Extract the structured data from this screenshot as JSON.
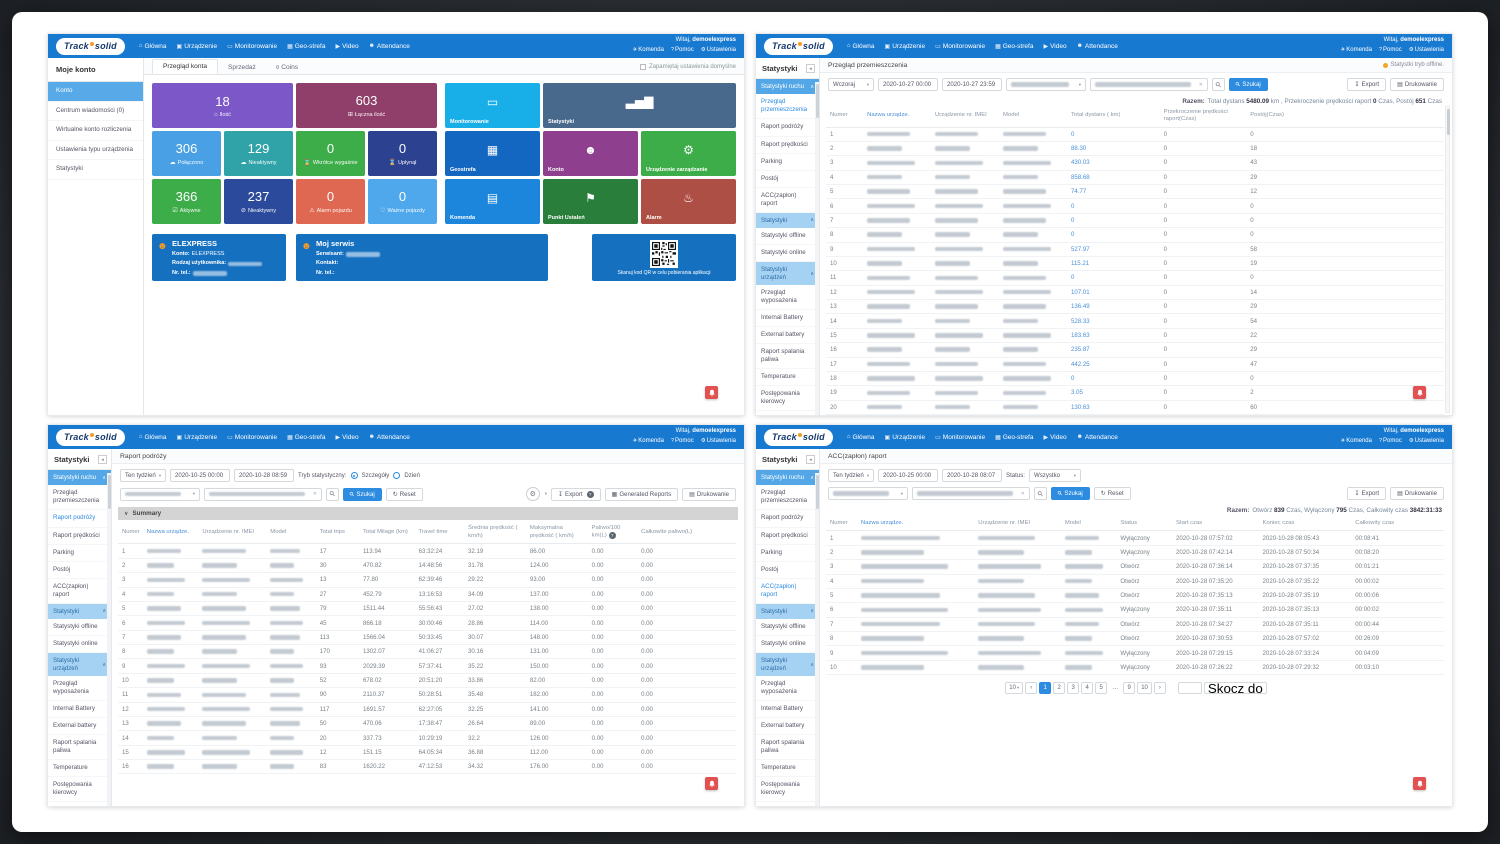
{
  "brand": {
    "track": "Track",
    "solid": "solid"
  },
  "nav": {
    "welcome": "Witaj,",
    "user": "demoelexpress",
    "items": [
      {
        "name": "home",
        "glyph": "⌂",
        "label": "Główna"
      },
      {
        "name": "device",
        "glyph": "▣",
        "label": "Urządzenie"
      },
      {
        "name": "monitoring",
        "glyph": "▭",
        "label": "Monitorowanie"
      },
      {
        "name": "geofence",
        "glyph": "▦",
        "label": "Geo-strefa"
      },
      {
        "name": "video",
        "glyph": "▶",
        "label": "Video"
      },
      {
        "name": "attendance",
        "glyph": "☻",
        "label": "Attendance"
      }
    ],
    "quick": [
      {
        "name": "command",
        "glyph": "✈",
        "label": "Komenda"
      },
      {
        "name": "help",
        "glyph": "?",
        "label": "Pomoc"
      },
      {
        "name": "settings",
        "glyph": "⚙",
        "label": "Ustawienia"
      }
    ]
  },
  "statsSidebar": {
    "title": "Statystyki",
    "sections": [
      {
        "label": "Statystyki ruchu",
        "items": [
          "Przegląd przemieszczenia",
          "Raport podróży",
          "Raport prędkości",
          "Parking",
          "Postój",
          "ACC(zapłon) raport"
        ]
      },
      {
        "label": "Statystyki",
        "items": [
          "Statystyki offline",
          "Statystyki online"
        ]
      },
      {
        "label": "Statystyki urządzeń",
        "items": [
          "Przegląd wyposażenia",
          "Internal Battery",
          "External battery",
          "Raport spalania paliwa",
          "Temperature",
          "Postępowania kierowcy",
          "Pozycjonowanie i Bateria"
        ]
      },
      {
        "label": "Statystyki alarmowe",
        "items": [
          "Przegląd alarmów",
          "Alarm szczegółowy"
        ]
      }
    ]
  },
  "q1": {
    "sidebar": {
      "title": "Moje konto",
      "items": [
        "Konto",
        "Centrum wiadomości (0)",
        "Wirtualne konto rozliczenia",
        "Ustawienia typu urządzenia",
        "Statystyki"
      ],
      "active": 0
    },
    "tabs": [
      {
        "label": "Przegląd konta",
        "active": true
      },
      {
        "label": "Sprzedaż"
      },
      {
        "label": "Coins",
        "icon": "¤"
      }
    ],
    "remember_label": "Zapamiętaj ustawienia domyślne",
    "tilesLeft": [
      {
        "value": "18",
        "label": "Ilość",
        "icon": "home-icon",
        "glyph": "⌂",
        "color": "#7b57c8",
        "span": 2
      },
      {
        "value": "603",
        "label": "Łączna ilość",
        "icon": "cart-icon",
        "glyph": "⊞",
        "color": "#8f3f69",
        "span": 2
      },
      {
        "value": "306",
        "label": "Połączono",
        "icon": "cloud-icon",
        "glyph": "☁",
        "color": "#4aa0e4"
      },
      {
        "value": "129",
        "label": "Nieaktywny",
        "icon": "cloud-icon",
        "glyph": "☁",
        "color": "#2fa3a8"
      },
      {
        "value": "0",
        "label": "Wkrótce wygaśnie",
        "icon": "hourglass-icon",
        "glyph": "⌛",
        "color": "#3dad49"
      },
      {
        "value": "0",
        "label": "Upłynął",
        "icon": "hourglass-icon",
        "glyph": "⌛",
        "color": "#2c4291"
      },
      {
        "value": "366",
        "label": "Aktywne",
        "icon": "user-check-icon",
        "glyph": "☑",
        "color": "#3dad49"
      },
      {
        "value": "237",
        "label": "Nieaktywny",
        "icon": "user-off-icon",
        "glyph": "⊘",
        "color": "#2c4a9c"
      },
      {
        "value": "0",
        "label": "Alarm pojazdu",
        "icon": "warning-icon",
        "glyph": "⚠",
        "color": "#df6852"
      },
      {
        "value": "0",
        "label": "Ważne pojazdy",
        "icon": "heart-icon",
        "glyph": "♡",
        "color": "#4fa8ec"
      }
    ],
    "tilesRight": [
      {
        "label": "Monitorowanie",
        "icon": "monitor-icon",
        "glyph": "▭",
        "color": "#18aee8"
      },
      {
        "label": "Statystyki",
        "icon": "chart-icon",
        "glyph": "▃▅▇",
        "color": "#48688c",
        "span": 2
      },
      {
        "label": "Geostrefa",
        "icon": "geofence-icon",
        "glyph": "▦",
        "color": "#1467c0"
      },
      {
        "label": "Konto",
        "icon": "user-icon",
        "glyph": "☻",
        "color": "#8e3f8e"
      },
      {
        "label": "Urządzenie zarządzanie",
        "icon": "router-icon",
        "glyph": "⚙",
        "color": "#3dad49"
      },
      {
        "label": "Komenda",
        "icon": "notebook-icon",
        "glyph": "▤",
        "color": "#1c86dc"
      },
      {
        "label": "Punkt Ustaleń",
        "icon": "flag-icon",
        "glyph": "⚑",
        "color": "#2a7e3c"
      },
      {
        "label": "Alarm",
        "icon": "bell-icon",
        "glyph": "♨",
        "color": "#ad4f44"
      }
    ],
    "cards": [
      {
        "title": "ELEXPRESS",
        "rows": [
          {
            "k": "Konto:",
            "v": "ELEXPRESS"
          },
          {
            "k": "Rodzaj użytkownika:",
            "v": null
          },
          {
            "k": "Nr. tel.:",
            "v": null
          }
        ]
      },
      {
        "title": "Moj serwis",
        "rows": [
          {
            "k": "Serwisant:",
            "v": null
          },
          {
            "k": "Kontakt:",
            "v": ""
          },
          {
            "k": "Nr. tel.:",
            "v": ""
          }
        ]
      },
      {
        "qr_caption": "Skanuj kod QR w celu pobierania aplikacji"
      }
    ]
  },
  "q2": {
    "sidebar_active": "Przegląd przemieszczenia",
    "breadcrumb": "Przegląd przemieszczenia",
    "offline_link": "Statystki tryb offline.",
    "filters": {
      "range": "Wczoraj",
      "from": "2020-10-27 00:00",
      "to": "2020-10-27 23:59",
      "search": "Szukaj",
      "export": "Export",
      "print": "Drukowanie"
    },
    "totals": [
      {
        "t": "Razem:",
        "lbl": true
      },
      {
        "t": "Total dystans "
      },
      {
        "t": "5480.09",
        "b": true
      },
      {
        "t": " km , Przekroczenie prędkości raport "
      },
      {
        "t": "0",
        "b": true
      },
      {
        "t": " Czas, Postój "
      },
      {
        "t": "651",
        "b": true
      },
      {
        "t": " Czas"
      }
    ],
    "table": {
      "headers": [
        "Numer",
        "Nazwa urządze.",
        "Urządzenie nr. IMEI",
        "Model",
        "Total dystans ( km)",
        "Przekroczenie prędkości raport(Czas)",
        "Postój(Czas)"
      ],
      "widths": [
        6,
        11,
        11,
        11,
        15,
        14,
        32
      ],
      "types": [
        "t",
        "r",
        "r",
        "r",
        "l",
        "t",
        "t"
      ],
      "link_header": 1,
      "rows": [
        [
          "1",
          null,
          null,
          null,
          "0",
          "0",
          "0"
        ],
        [
          "2",
          null,
          null,
          null,
          "88.30",
          "0",
          "18"
        ],
        [
          "3",
          null,
          null,
          null,
          "430.03",
          "0",
          "43"
        ],
        [
          "4",
          null,
          null,
          null,
          "858.68",
          "0",
          "29"
        ],
        [
          "5",
          null,
          null,
          null,
          "74.77",
          "0",
          "12"
        ],
        [
          "6",
          null,
          null,
          null,
          "0",
          "0",
          "0"
        ],
        [
          "7",
          null,
          null,
          null,
          "0",
          "0",
          "0"
        ],
        [
          "8",
          null,
          null,
          null,
          "0",
          "0",
          "0"
        ],
        [
          "9",
          null,
          null,
          null,
          "527.97",
          "0",
          "58"
        ],
        [
          "10",
          null,
          null,
          null,
          "115.21",
          "0",
          "19"
        ],
        [
          "11",
          null,
          null,
          null,
          "0",
          "0",
          "0"
        ],
        [
          "12",
          null,
          null,
          null,
          "107.01",
          "0",
          "14"
        ],
        [
          "13",
          null,
          null,
          null,
          "136.49",
          "0",
          "29"
        ],
        [
          "14",
          null,
          null,
          null,
          "528.33",
          "0",
          "54"
        ],
        [
          "15",
          null,
          null,
          null,
          "183.63",
          "0",
          "22"
        ],
        [
          "16",
          null,
          null,
          null,
          "235.87",
          "0",
          "29"
        ],
        [
          "17",
          null,
          null,
          null,
          "442.25",
          "0",
          "47"
        ],
        [
          "18",
          null,
          null,
          null,
          "0",
          "0",
          "0"
        ],
        [
          "19",
          null,
          null,
          null,
          "3.05",
          "0",
          "2"
        ],
        [
          "20",
          null,
          null,
          null,
          "130.63",
          "0",
          "60"
        ]
      ]
    }
  },
  "q3": {
    "sidebar_active": "Raport podróży",
    "breadcrumb": "Raport podróży",
    "filters": {
      "range": "Ten tydzień",
      "from": "2020-10-25 00:00",
      "to": "2020-10-28 08:59",
      "mode_label": "Tryb statystyczny:",
      "mode1": "Szczegóły",
      "mode2": "Dzień",
      "search": "Szukaj",
      "reset": "Reset",
      "export": "Export",
      "reports": "Generated Reports",
      "print": "Drukowanie"
    },
    "summary_label": "Summary",
    "table": {
      "headers": [
        "Numer",
        "Nazwa urządze.",
        "Urządzenie nr. IMEI",
        "Model",
        "Total trips",
        "Total Milage (km)",
        "Travel time",
        "Średnia prędkość ( km/h)",
        "Maksymalna prędkość ( km/h)",
        "Paliwo/100 km(L)",
        "Całkowite paliwo(L)"
      ],
      "widths": [
        4,
        9,
        11,
        8,
        7,
        9,
        8,
        10,
        10,
        8,
        16
      ],
      "types": [
        "t",
        "r",
        "r",
        "r",
        "t",
        "t",
        "t",
        "t",
        "t",
        "t",
        "t"
      ],
      "link_header": 1,
      "help_col": 9,
      "rows": [
        [
          "1",
          null,
          null,
          null,
          "17",
          "113.94",
          "63:32:24",
          "32.19",
          "86.00",
          "0.00",
          "0.00"
        ],
        [
          "2",
          null,
          null,
          null,
          "30",
          "470.82",
          "14:48:56",
          "31.78",
          "124.00",
          "0.00",
          "0.00"
        ],
        [
          "3",
          null,
          null,
          null,
          "13",
          "77.80",
          "62:39:46",
          "29.22",
          "93.00",
          "0.00",
          "0.00"
        ],
        [
          "4",
          null,
          null,
          null,
          "27",
          "452.79",
          "13:16:53",
          "34.09",
          "137.00",
          "0.00",
          "0.00"
        ],
        [
          "5",
          null,
          null,
          null,
          "79",
          "1511.44",
          "55:56:43",
          "27.02",
          "138.00",
          "0.00",
          "0.00"
        ],
        [
          "6",
          null,
          null,
          null,
          "45",
          "866.18",
          "30:00:46",
          "28.86",
          "114.00",
          "0.00",
          "0.00"
        ],
        [
          "7",
          null,
          null,
          null,
          "113",
          "1566.04",
          "50:33:45",
          "30.07",
          "148.00",
          "0.00",
          "0.00"
        ],
        [
          "8",
          null,
          null,
          null,
          "170",
          "1302.07",
          "41:06:27",
          "30.16",
          "131.00",
          "0.00",
          "0.00"
        ],
        [
          "9",
          null,
          null,
          null,
          "93",
          "2029.39",
          "57:37:41",
          "35.22",
          "150.00",
          "0.00",
          "0.00"
        ],
        [
          "10",
          null,
          null,
          null,
          "52",
          "678.02",
          "20:51:20",
          "33.86",
          "82.00",
          "0.00",
          "0.00"
        ],
        [
          "11",
          null,
          null,
          null,
          "90",
          "2110.37",
          "50:28:51",
          "35.48",
          "182.00",
          "0.00",
          "0.00"
        ],
        [
          "12",
          null,
          null,
          null,
          "117",
          "1691.57",
          "62:27:05",
          "32.25",
          "141.00",
          "0.00",
          "0.00"
        ],
        [
          "13",
          null,
          null,
          null,
          "50",
          "470.06",
          "17:38:47",
          "26.64",
          "89.00",
          "0.00",
          "0.00"
        ],
        [
          "14",
          null,
          null,
          null,
          "20",
          "337.73",
          "10:29:19",
          "32.2",
          "126.00",
          "0.00",
          "0.00"
        ],
        [
          "15",
          null,
          null,
          null,
          "12",
          "151.15",
          "64:05:34",
          "36.88",
          "112.00",
          "0.00",
          "0.00"
        ],
        [
          "16",
          null,
          null,
          null,
          "83",
          "1620.22",
          "47:12:53",
          "34.32",
          "176.00",
          "0.00",
          "0.00"
        ]
      ]
    }
  },
  "q4": {
    "sidebar_active": "ACC(zapłon) raport",
    "breadcrumb": "ACC(zapłon) raport",
    "filters": {
      "range": "Ten tydzień",
      "from": "2020-10-25 00:00",
      "to": "2020-10-28 08:07",
      "status_label": "Status:",
      "status": "Wszystko",
      "search": "Szukaj",
      "reset": "Reset",
      "export": "Export",
      "print": "Drukowanie"
    },
    "totals": [
      {
        "t": "Razem:",
        "lbl": true
      },
      {
        "t": "Otwórz "
      },
      {
        "t": "839",
        "b": true
      },
      {
        "t": " Czas, Wyłączony "
      },
      {
        "t": "795",
        "b": true
      },
      {
        "t": " Czas, Całkowity czas "
      },
      {
        "t": "3842:31:33",
        "b": true
      }
    ],
    "table": {
      "headers": [
        "Numer",
        "Nazwa urządze.",
        "Urządzenie nr. IMEI",
        "Model",
        "Status",
        "Start czas",
        "Koniec czas",
        "Całkowity czas"
      ],
      "widths": [
        5,
        19,
        14,
        9,
        9,
        14,
        15,
        15
      ],
      "types": [
        "t",
        "r",
        "r",
        "r",
        "t",
        "t",
        "t",
        "t"
      ],
      "link_header": 1,
      "rows": [
        [
          "1",
          null,
          null,
          null,
          "Wyłączony",
          "2020-10-28 07:57:02",
          "2020-10-28 08:05:43",
          "00:08:41"
        ],
        [
          "2",
          null,
          null,
          null,
          "Wyłączony",
          "2020-10-28 07:42:14",
          "2020-10-28 07:50:34",
          "00:08:20"
        ],
        [
          "3",
          null,
          null,
          null,
          "Otwórz",
          "2020-10-28 07:36:14",
          "2020-10-28 07:37:35",
          "00:01:21"
        ],
        [
          "4",
          null,
          null,
          null,
          "Otwórz",
          "2020-10-28 07:35:20",
          "2020-10-28 07:35:22",
          "00:00:02"
        ],
        [
          "5",
          null,
          null,
          null,
          "Otwórz",
          "2020-10-28 07:35:13",
          "2020-10-28 07:35:19",
          "00:00:06"
        ],
        [
          "6",
          null,
          null,
          null,
          "Wyłączony",
          "2020-10-28 07:35:11",
          "2020-10-28 07:35:13",
          "00:00:02"
        ],
        [
          "7",
          null,
          null,
          null,
          "Otwórz",
          "2020-10-28 07:34:27",
          "2020-10-28 07:35:11",
          "00:00:44"
        ],
        [
          "8",
          null,
          null,
          null,
          "Otwórz",
          "2020-10-28 07:30:53",
          "2020-10-28 07:57:02",
          "00:26:09"
        ],
        [
          "9",
          null,
          null,
          null,
          "Wyłączony",
          "2020-10-28 07:29:15",
          "2020-10-28 07:33:24",
          "00:04:09"
        ],
        [
          "10",
          null,
          null,
          null,
          "Wyłączony",
          "2020-10-28 07:26:22",
          "2020-10-28 07:29:32",
          "00:03:10"
        ]
      ]
    },
    "pagination": {
      "per_page": "10",
      "prev": "‹",
      "pages": [
        "1",
        "2",
        "3",
        "4",
        "5",
        "...",
        "9",
        "10"
      ],
      "active": "1",
      "next": "›",
      "jump_label": "Skocz do"
    }
  }
}
